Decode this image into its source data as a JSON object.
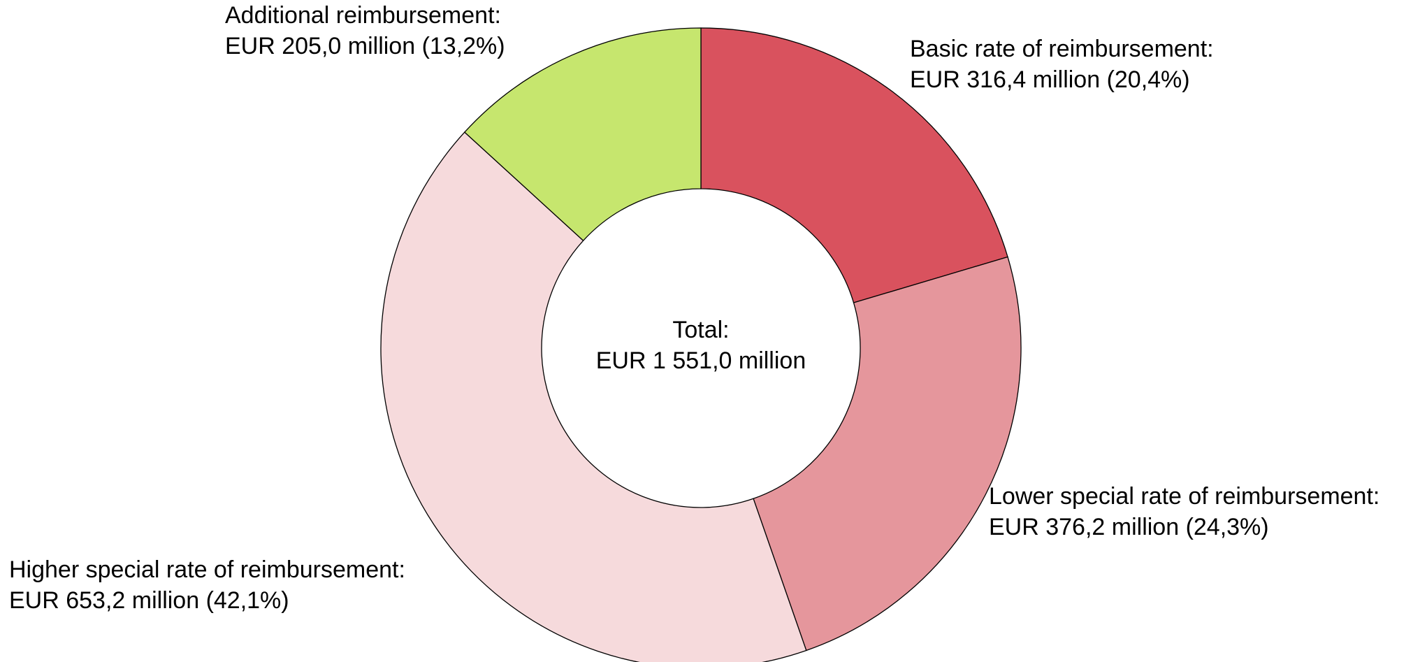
{
  "chart_data": {
    "type": "donut",
    "categories": [
      "Basic rate of reimbursement:",
      "Lower special rate of reimbursement:",
      "Higher special rate of reimbursement:",
      "Additional reimbursement:"
    ],
    "values": [
      316.4,
      376.2,
      653.2,
      205.0
    ],
    "value_labels": [
      "EUR 316,4 million (20,4%)",
      "EUR 376,2 million (24,3%)",
      "EUR 653,2 million (42,1%)",
      "EUR 205,0 million (13,2%)"
    ],
    "colors": [
      "#d9525e",
      "#e5969c",
      "#f6dadc",
      "#c6e66e"
    ],
    "center_label": [
      "Total:",
      "EUR 1 551,0 million"
    ]
  }
}
